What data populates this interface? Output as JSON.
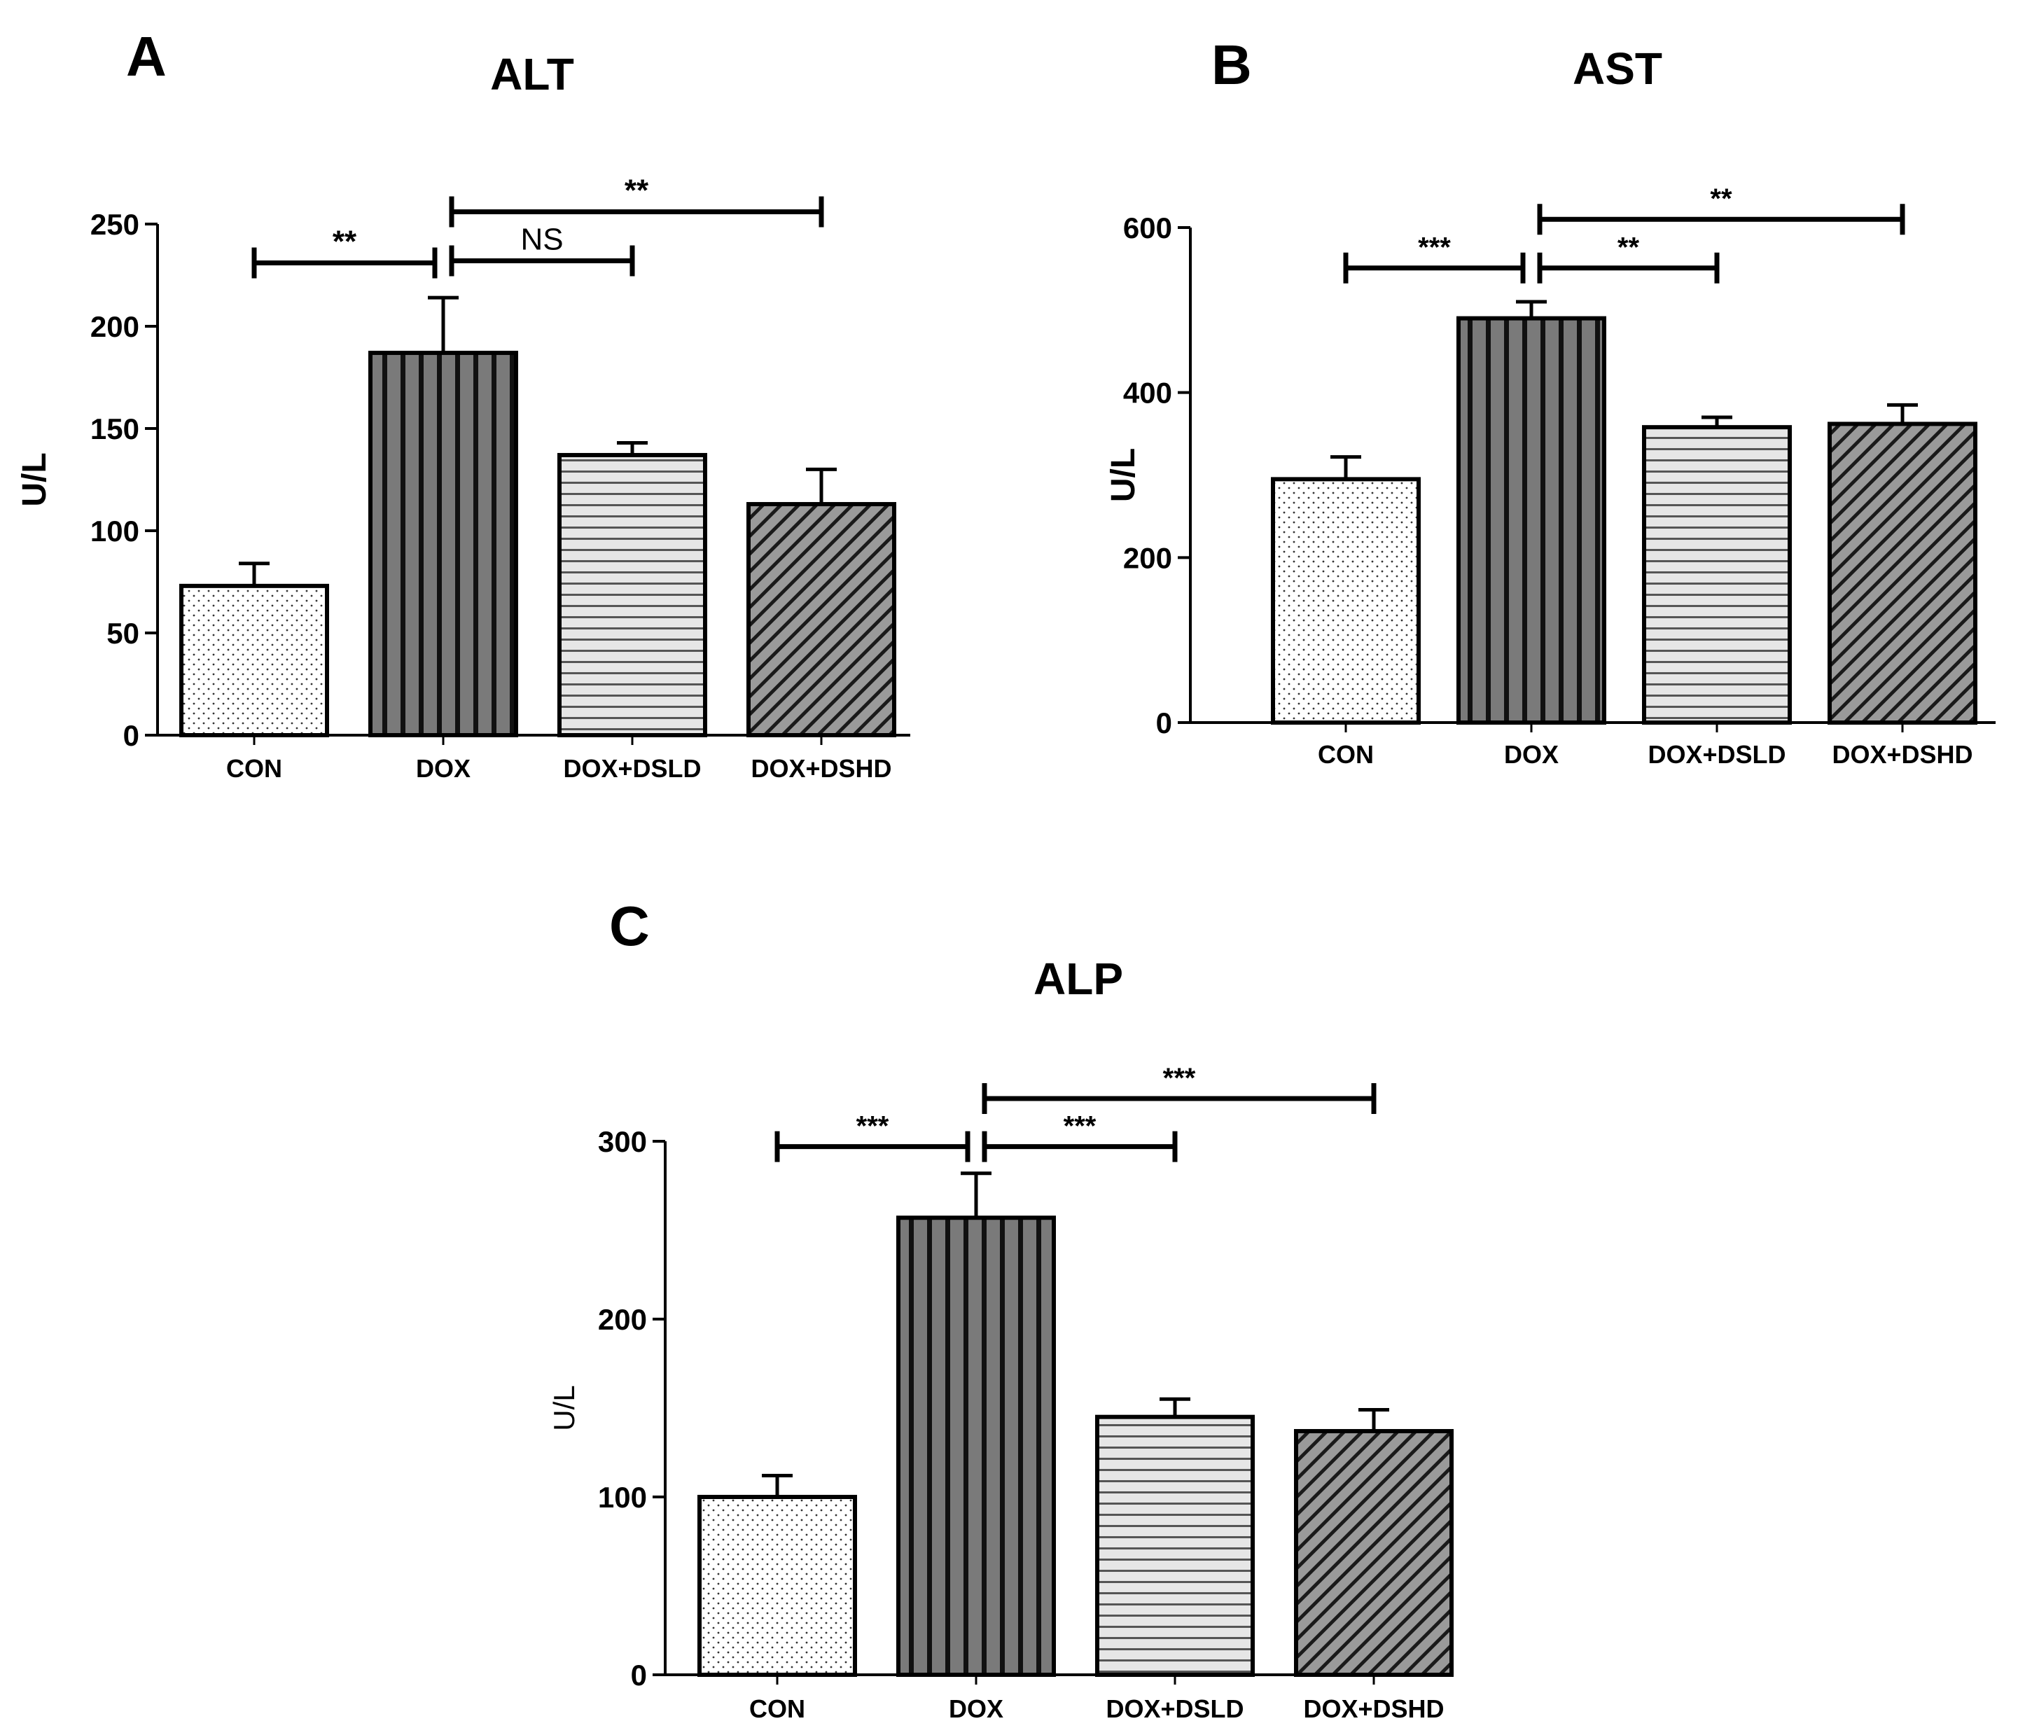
{
  "chart_data": [
    {
      "panel_label": "A",
      "type": "bar",
      "title": "ALT",
      "ylabel": "U/L",
      "xlabel": "",
      "ylim": [
        0,
        250
      ],
      "yticks": [
        0,
        50,
        100,
        150,
        200,
        250
      ],
      "categories": [
        "CON",
        "DOX",
        "DOX+DSLD",
        "DOX+DSHD"
      ],
      "values": [
        73,
        187,
        137,
        113
      ],
      "errors": [
        11,
        27,
        6,
        17
      ],
      "patterns": [
        "dots",
        "vertical",
        "horizontal",
        "diagonal"
      ],
      "significance": [
        {
          "from": 0,
          "to": 1,
          "label": "**",
          "level": 231
        },
        {
          "from": 1,
          "to": 2,
          "label": "NS",
          "level": 232
        },
        {
          "from": 1,
          "to": 3,
          "label": "**",
          "level": 256
        }
      ]
    },
    {
      "panel_label": "B",
      "type": "bar",
      "title": "AST",
      "ylabel": "U/L",
      "xlabel": "",
      "ylim": [
        0,
        600
      ],
      "yticks": [
        0,
        200,
        400,
        600
      ],
      "categories": [
        "CON",
        "DOX",
        "DOX+DSLD",
        "DOX+DSHD"
      ],
      "values": [
        295,
        490,
        358,
        362
      ],
      "errors": [
        27,
        20,
        12,
        23
      ],
      "patterns": [
        "dots",
        "vertical",
        "horizontal",
        "diagonal"
      ],
      "significance": [
        {
          "from": 0,
          "to": 1,
          "label": "***",
          "level": 551
        },
        {
          "from": 1,
          "to": 2,
          "label": "**",
          "level": 551
        },
        {
          "from": 1,
          "to": 3,
          "label": "**",
          "level": 610
        }
      ]
    },
    {
      "panel_label": "C",
      "type": "bar",
      "title": "ALP",
      "ylabel": "U/L",
      "xlabel": "",
      "ylim": [
        0,
        300
      ],
      "yticks": [
        0,
        100,
        200,
        300
      ],
      "categories": [
        "CON",
        "DOX",
        "DOX+DSLD",
        "DOX+DSHD"
      ],
      "values": [
        100,
        257,
        145,
        137
      ],
      "errors": [
        12,
        25,
        10,
        12
      ],
      "patterns": [
        "dots",
        "vertical",
        "horizontal",
        "diagonal"
      ],
      "significance": [
        {
          "from": 0,
          "to": 1,
          "label": "***",
          "level": 297
        },
        {
          "from": 1,
          "to": 2,
          "label": "***",
          "level": 297
        },
        {
          "from": 1,
          "to": 3,
          "label": "***",
          "level": 324
        }
      ]
    }
  ]
}
